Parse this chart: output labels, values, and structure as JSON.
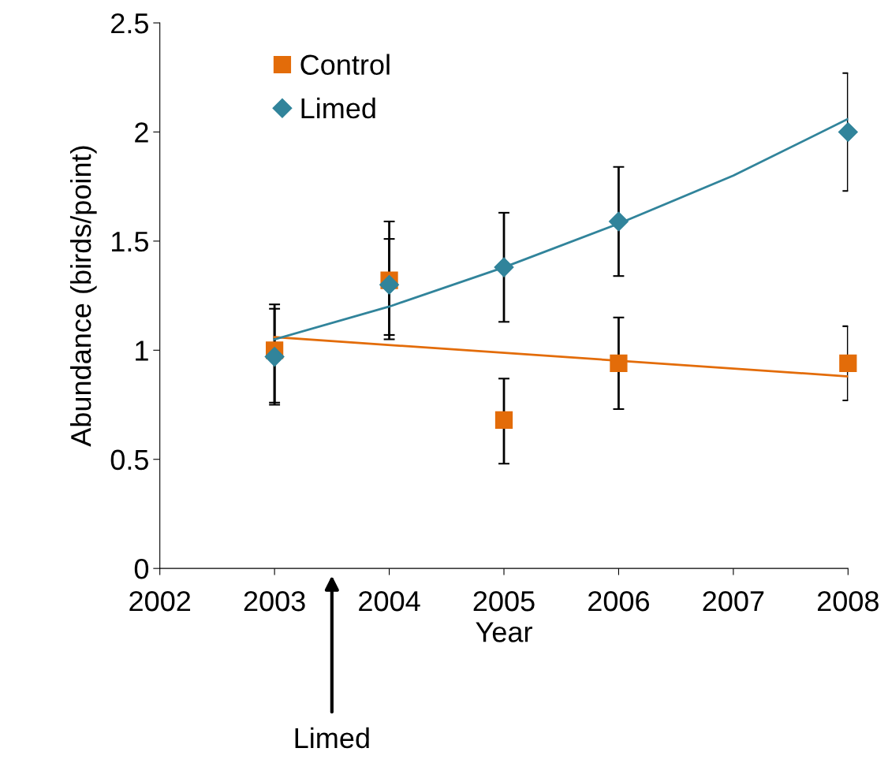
{
  "chart_data": {
    "type": "scatter",
    "xlabel": "Year",
    "ylabel": "Abundance (birds/point)",
    "x": [
      2003,
      2004,
      2005,
      2006,
      2008
    ],
    "series": [
      {
        "name": "Control",
        "color": "#e36c09",
        "marker": "square",
        "values": [
          1.0,
          1.32,
          0.68,
          0.94,
          0.94
        ],
        "errors": [
          [
            0.75,
            1.21
          ],
          [
            1.05,
            1.59
          ],
          [
            0.48,
            0.87
          ],
          [
            0.73,
            1.15
          ],
          [
            0.77,
            1.11
          ]
        ]
      },
      {
        "name": "Limed",
        "color": "#31849b",
        "marker": "diamond",
        "values": [
          0.97,
          1.3,
          1.38,
          1.59,
          2.0
        ],
        "errors": [
          [
            0.76,
            1.19
          ],
          [
            1.07,
            1.51
          ],
          [
            1.13,
            1.63
          ],
          [
            1.34,
            1.84
          ],
          [
            1.73,
            2.27
          ]
        ]
      },
      {
        "type": "line",
        "color": "#e36c09",
        "marker": "none",
        "x": [
          2003,
          2008
        ],
        "values": [
          1.06,
          0.88
        ]
      },
      {
        "type": "line",
        "color": "#31849b",
        "marker": "none",
        "x": [
          2003,
          2004,
          2005,
          2006,
          2007,
          2008
        ],
        "values": [
          1.05,
          1.2,
          1.38,
          1.58,
          1.8,
          2.06
        ]
      }
    ],
    "xlim": [
      2002,
      2008
    ],
    "xticks": [
      2002,
      2003,
      2004,
      2005,
      2006,
      2007,
      2008
    ],
    "ylim": [
      0,
      2.5
    ],
    "yticks": [
      0,
      0.5,
      1,
      1.5,
      2,
      2.5
    ],
    "grid": false,
    "legend": "top left",
    "annotations": [
      "Limed"
    ]
  }
}
